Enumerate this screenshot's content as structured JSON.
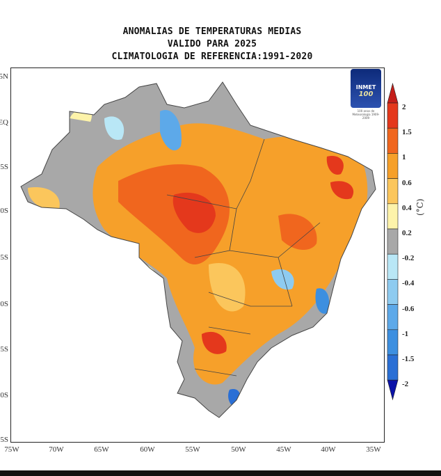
{
  "title": {
    "line1": "ANOMALIAS DE TEMPERATURAS MEDIAS",
    "line2": "VALIDO PARA 2025",
    "line3": "CLIMATOLOGIA DE REFERENCIA:1991-2020"
  },
  "axes": {
    "y_labels": [
      "5N",
      "EQ",
      "5S",
      "10S",
      "15S",
      "20S",
      "25S",
      "30S",
      "35S"
    ],
    "x_labels": [
      "75W",
      "70W",
      "65W",
      "60W",
      "55W",
      "50W",
      "45W",
      "40W",
      "35W"
    ]
  },
  "logo": {
    "name": "INMET",
    "number": "100",
    "caption": "100 anos de Meteorologia 1909-2009"
  },
  "colorbar": {
    "unit": "(°C)",
    "labels": [
      "2",
      "1.5",
      "1",
      "0.6",
      "0.4",
      "0.2",
      "-0.2",
      "-0.4",
      "-0.6",
      "-1",
      "-1.5",
      "-2"
    ],
    "colors": [
      "#c41e1a",
      "#e4381c",
      "#f0661e",
      "#f6a02a",
      "#fbc65c",
      "#fdf3aa",
      "#a8a8a8",
      "#b9e7f6",
      "#8ecbf0",
      "#5da9e9",
      "#3d8fe0",
      "#2a6fd5",
      "#0b12a8"
    ]
  }
}
